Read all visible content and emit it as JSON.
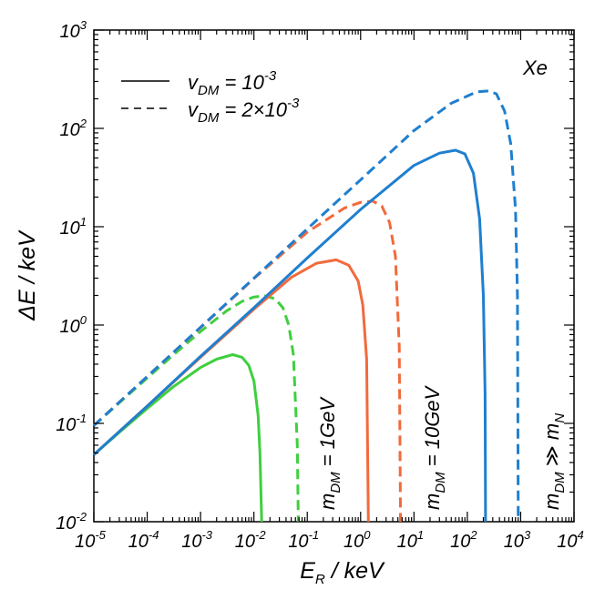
{
  "chart_data": {
    "type": "line",
    "x_scale": "log",
    "y_scale": "log",
    "xlim": [
      1e-05,
      10000
    ],
    "ylim": [
      0.01,
      1000
    ],
    "grid": false,
    "xlabel": {
      "main": "E",
      "sub": "R",
      "rest": " / keV"
    },
    "ylabel": "ΔE / keV",
    "x_ticks": [
      {
        "base": "10",
        "exp": "-5",
        "value": 1e-05
      },
      {
        "base": "10",
        "exp": "-4",
        "value": 0.0001
      },
      {
        "base": "10",
        "exp": "-3",
        "value": 0.001
      },
      {
        "base": "10",
        "exp": "-2",
        "value": 0.01
      },
      {
        "base": "10",
        "exp": "-1",
        "value": 0.1
      },
      {
        "base": "10",
        "exp": "0",
        "value": 1
      },
      {
        "base": "10",
        "exp": "1",
        "value": 10
      },
      {
        "base": "10",
        "exp": "2",
        "value": 100
      },
      {
        "base": "10",
        "exp": "3",
        "value": 1000
      },
      {
        "base": "10",
        "exp": "4",
        "value": 10000
      }
    ],
    "y_ticks": [
      {
        "base": "10",
        "exp": "-2",
        "value": 0.01
      },
      {
        "base": "10",
        "exp": "-1",
        "value": 0.1
      },
      {
        "base": "10",
        "exp": "0",
        "value": 1
      },
      {
        "base": "10",
        "exp": "1",
        "value": 10
      },
      {
        "base": "10",
        "exp": "2",
        "value": 100
      },
      {
        "base": "10",
        "exp": "3",
        "value": 1000
      }
    ],
    "legend": {
      "placement": "top-left",
      "entries": [
        {
          "style": "solid",
          "main": "v",
          "sub": "DM",
          "rest": " = 10",
          "sup": "-3"
        },
        {
          "style": "dashed",
          "main": "v",
          "sub": "DM",
          "rest": " = 2×10",
          "sup": "-3"
        }
      ]
    },
    "annotations": {
      "target": "Xe",
      "mass_labels": [
        {
          "main": "m",
          "sub": "DM",
          "rest": " = 1GeV",
          "color": "green"
        },
        {
          "main": "m",
          "sub": "DM",
          "rest": " = 10GeV",
          "color": "orange"
        },
        {
          "main": "m",
          "sub": "DM",
          "rest": " ≫ m",
          "sub2": "N",
          "color": "blue"
        }
      ]
    },
    "colors": {
      "green": "#3fcf3f",
      "orange": "#f26a3c",
      "blue": "#1f7fcf"
    },
    "series": [
      {
        "color": "green",
        "style": "dashed",
        "x": [
          1e-05,
          3e-05,
          0.0001,
          0.0003,
          0.001,
          0.003,
          0.006,
          0.01,
          0.016,
          0.025,
          0.035,
          0.045,
          0.055,
          0.065,
          0.068
        ],
        "y": [
          0.095,
          0.162,
          0.29,
          0.49,
          0.86,
          1.38,
          1.74,
          1.93,
          1.98,
          1.85,
          1.5,
          1.0,
          0.5,
          0.06,
          0.01
        ]
      },
      {
        "color": "green",
        "style": "solid",
        "x": [
          1e-05,
          3e-05,
          0.0001,
          0.0003,
          0.001,
          0.002,
          0.004,
          0.006,
          0.008,
          0.01,
          0.012,
          0.013,
          0.014
        ],
        "y": [
          0.048,
          0.081,
          0.142,
          0.233,
          0.37,
          0.45,
          0.5,
          0.47,
          0.39,
          0.27,
          0.12,
          0.05,
          0.01
        ]
      },
      {
        "color": "orange",
        "style": "dashed",
        "x": [
          1e-05,
          0.0001,
          0.001,
          0.01,
          0.1,
          0.5,
          1.0,
          1.7,
          2.5,
          3.5,
          4.5,
          5.3,
          5.6
        ],
        "y": [
          0.095,
          0.3,
          0.94,
          2.97,
          8.8,
          15.5,
          17.7,
          18.2,
          16.2,
          11.0,
          5.0,
          0.6,
          0.01
        ]
      },
      {
        "color": "orange",
        "style": "solid",
        "x": [
          1e-05,
          0.0001,
          0.001,
          0.01,
          0.05,
          0.15,
          0.35,
          0.6,
          0.9,
          1.1,
          1.3,
          1.4
        ],
        "y": [
          0.048,
          0.15,
          0.47,
          1.45,
          3.05,
          4.25,
          4.6,
          4.05,
          2.8,
          1.6,
          0.45,
          0.01
        ]
      },
      {
        "color": "blue",
        "style": "dashed",
        "x": [
          1e-05,
          0.0001,
          0.001,
          0.01,
          0.1,
          1,
          10,
          50,
          150,
          250,
          350,
          500,
          650,
          800,
          870,
          900
        ],
        "y": [
          0.095,
          0.3,
          0.95,
          3.0,
          9.5,
          30.0,
          95.0,
          180.0,
          235.0,
          240.0,
          225.0,
          150.0,
          70.0,
          15.0,
          2.0,
          0.01
        ]
      },
      {
        "color": "blue",
        "style": "solid",
        "x": [
          1e-05,
          0.0001,
          0.001,
          0.01,
          0.1,
          1,
          10,
          30,
          60,
          90,
          130,
          170,
          200,
          215,
          220
        ],
        "y": [
          0.048,
          0.15,
          0.48,
          1.5,
          4.8,
          15.0,
          42.0,
          56.0,
          60.0,
          55.0,
          35.0,
          12.0,
          2.0,
          0.2,
          0.01
        ]
      }
    ]
  }
}
